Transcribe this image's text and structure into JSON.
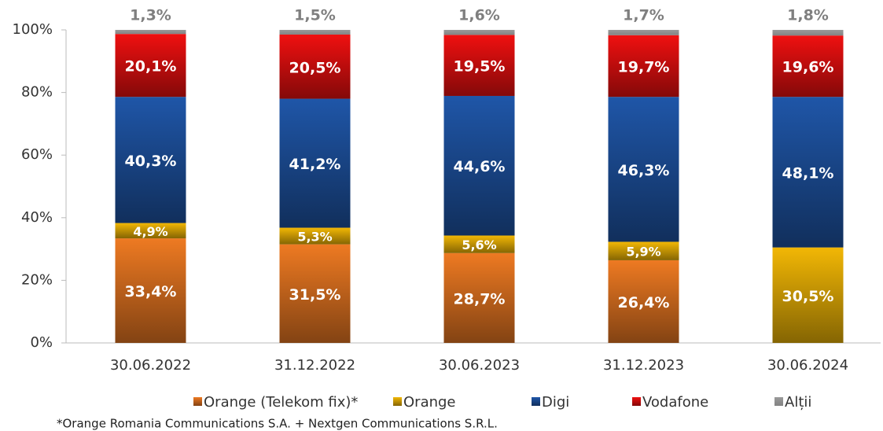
{
  "chart_data": {
    "type": "stacked-bar",
    "categories": [
      "30.06.2022",
      "31.12.2022",
      "30.06.2023",
      "31.12.2023",
      "30.06.2024"
    ],
    "series": [
      {
        "name": "Orange (Telekom fix)*",
        "color": "#ee7a22",
        "values": [
          33.4,
          31.5,
          28.7,
          26.4,
          null
        ],
        "value_labels": [
          "33,4%",
          "31,5%",
          "28,7%",
          "26,4%",
          null
        ]
      },
      {
        "name": "Orange",
        "color": "#f2b705",
        "values": [
          4.9,
          5.3,
          5.6,
          5.9,
          30.5
        ],
        "value_labels": [
          "4,9%",
          "5,3%",
          "5,6%",
          "5,9%",
          "30,5%"
        ]
      },
      {
        "name": "Digi",
        "color": "#1f56a8",
        "values": [
          40.3,
          41.2,
          44.6,
          46.3,
          48.1
        ],
        "value_labels": [
          "40,3%",
          "41,2%",
          "44,6%",
          "46,3%",
          "48,1%"
        ]
      },
      {
        "name": "Vodafone",
        "color": "#f01010",
        "values": [
          20.1,
          20.5,
          19.5,
          19.7,
          19.6
        ],
        "value_labels": [
          "20,1%",
          "20,5%",
          "19,5%",
          "19,7%",
          "19,6%"
        ]
      },
      {
        "name": "Alții",
        "color": "#9a9a9a",
        "values": [
          1.3,
          1.5,
          1.6,
          1.7,
          1.8
        ],
        "value_labels": [
          "1,3%",
          "1,5%",
          "1,6%",
          "1,7%",
          "1,8%"
        ]
      }
    ],
    "ylim": [
      0,
      100
    ],
    "yticks": [
      {
        "value": 0,
        "label": "0%"
      },
      {
        "value": 20,
        "label": "20%"
      },
      {
        "value": 40,
        "label": "40%"
      },
      {
        "value": 60,
        "label": "60%"
      },
      {
        "value": 80,
        "label": "80%"
      },
      {
        "value": 100,
        "label": "100%"
      }
    ],
    "legend": "bottom",
    "footnote": "*Orange Romania Communications S.A. + Nextgen Communications S.R.L."
  }
}
